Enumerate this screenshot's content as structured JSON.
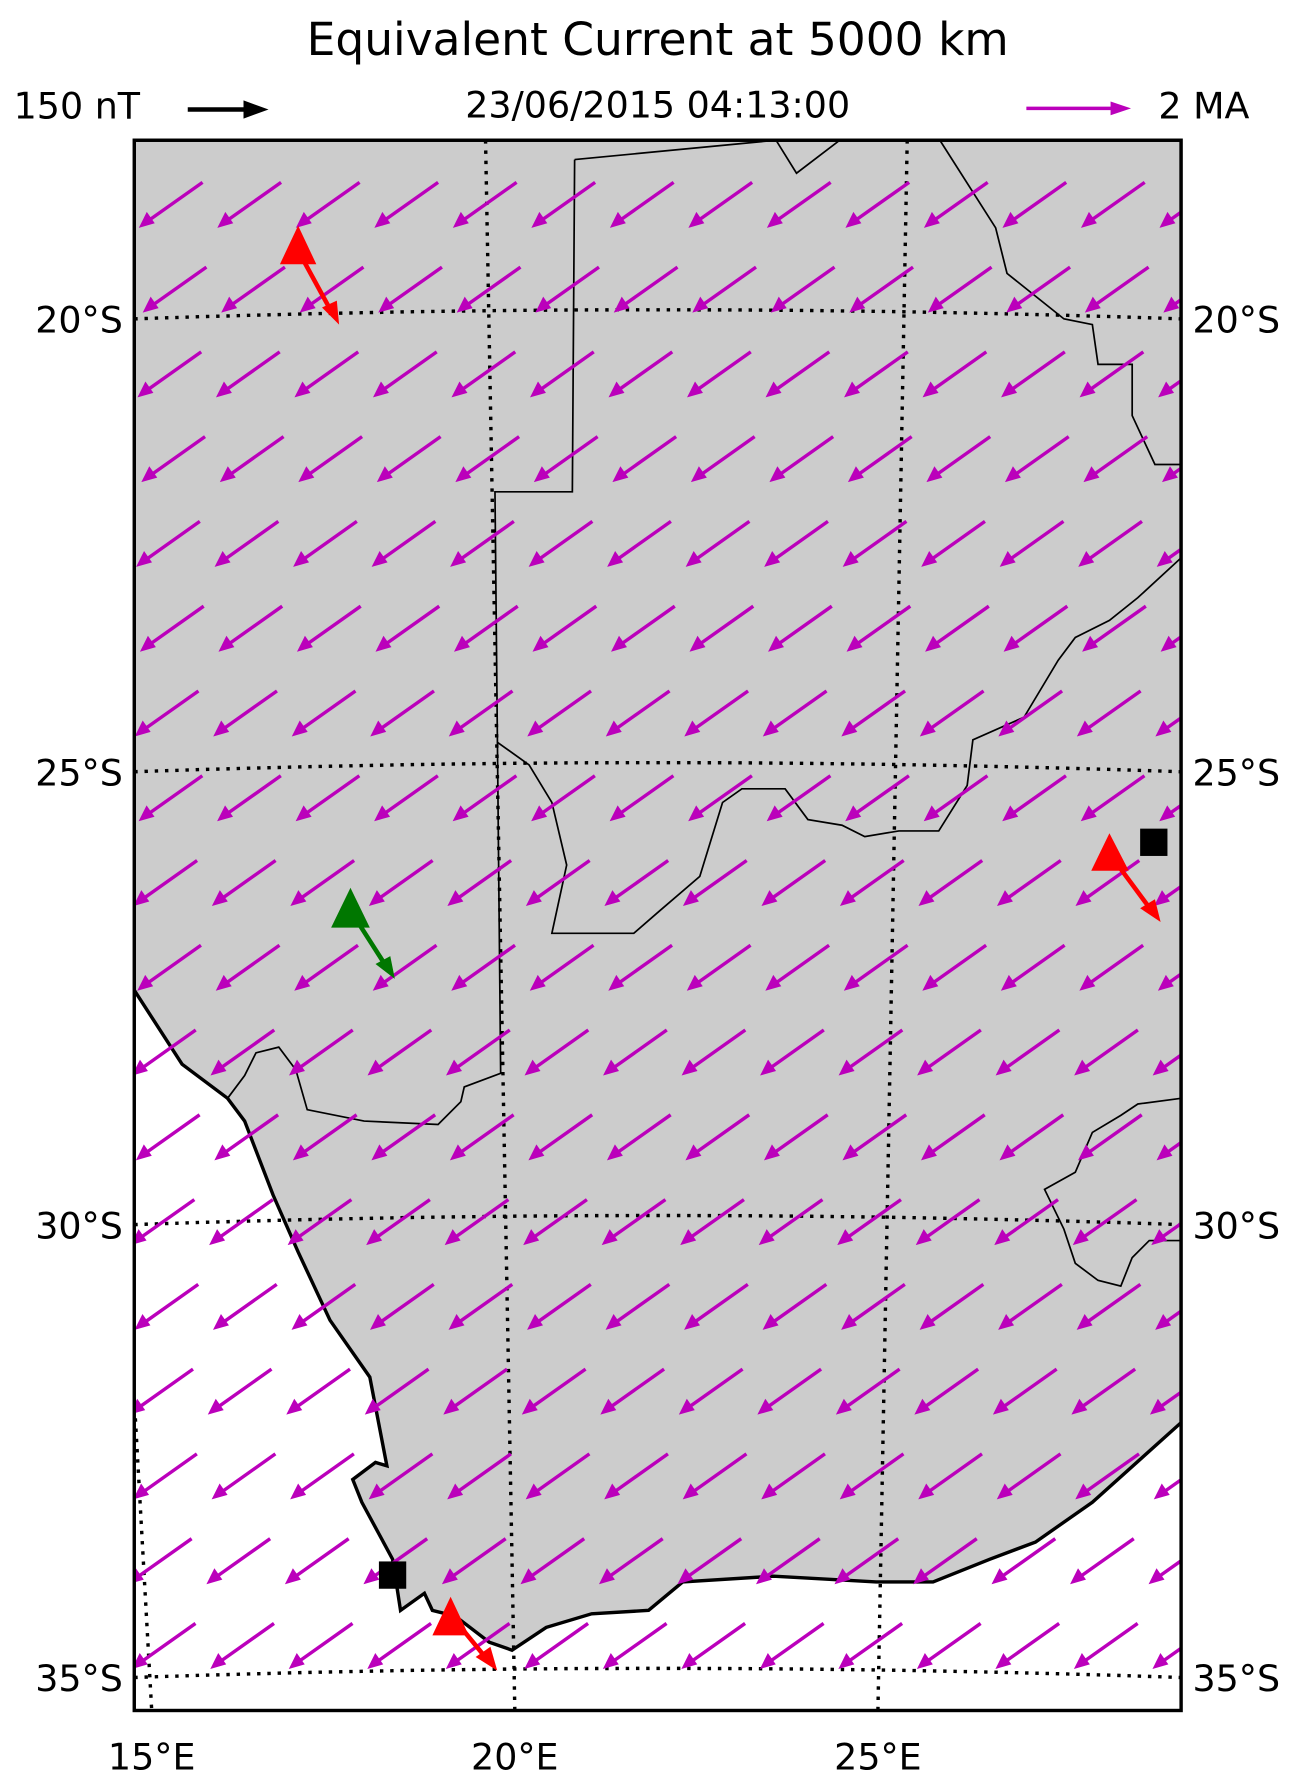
{
  "chart_data": {
    "type": "map",
    "title": "Equivalent Current at 5000 km",
    "timestamp": "23/06/2015 04:13:00",
    "legend": [
      {
        "name": "150 nT",
        "color": "#000000"
      },
      {
        "name": "2 MA",
        "color": "#bb00bb"
      }
    ],
    "yticks": [
      {
        "value": -20,
        "label": "20°S"
      },
      {
        "value": -25,
        "label": "25°S"
      },
      {
        "value": -30,
        "label": "30°S"
      },
      {
        "value": -35,
        "label": "35°S"
      }
    ],
    "xticks": [
      {
        "value": 15,
        "label": "15°E"
      },
      {
        "value": 20,
        "label": "20°E"
      },
      {
        "value": 25,
        "label": "25°E"
      }
    ],
    "grid": true
  }
}
